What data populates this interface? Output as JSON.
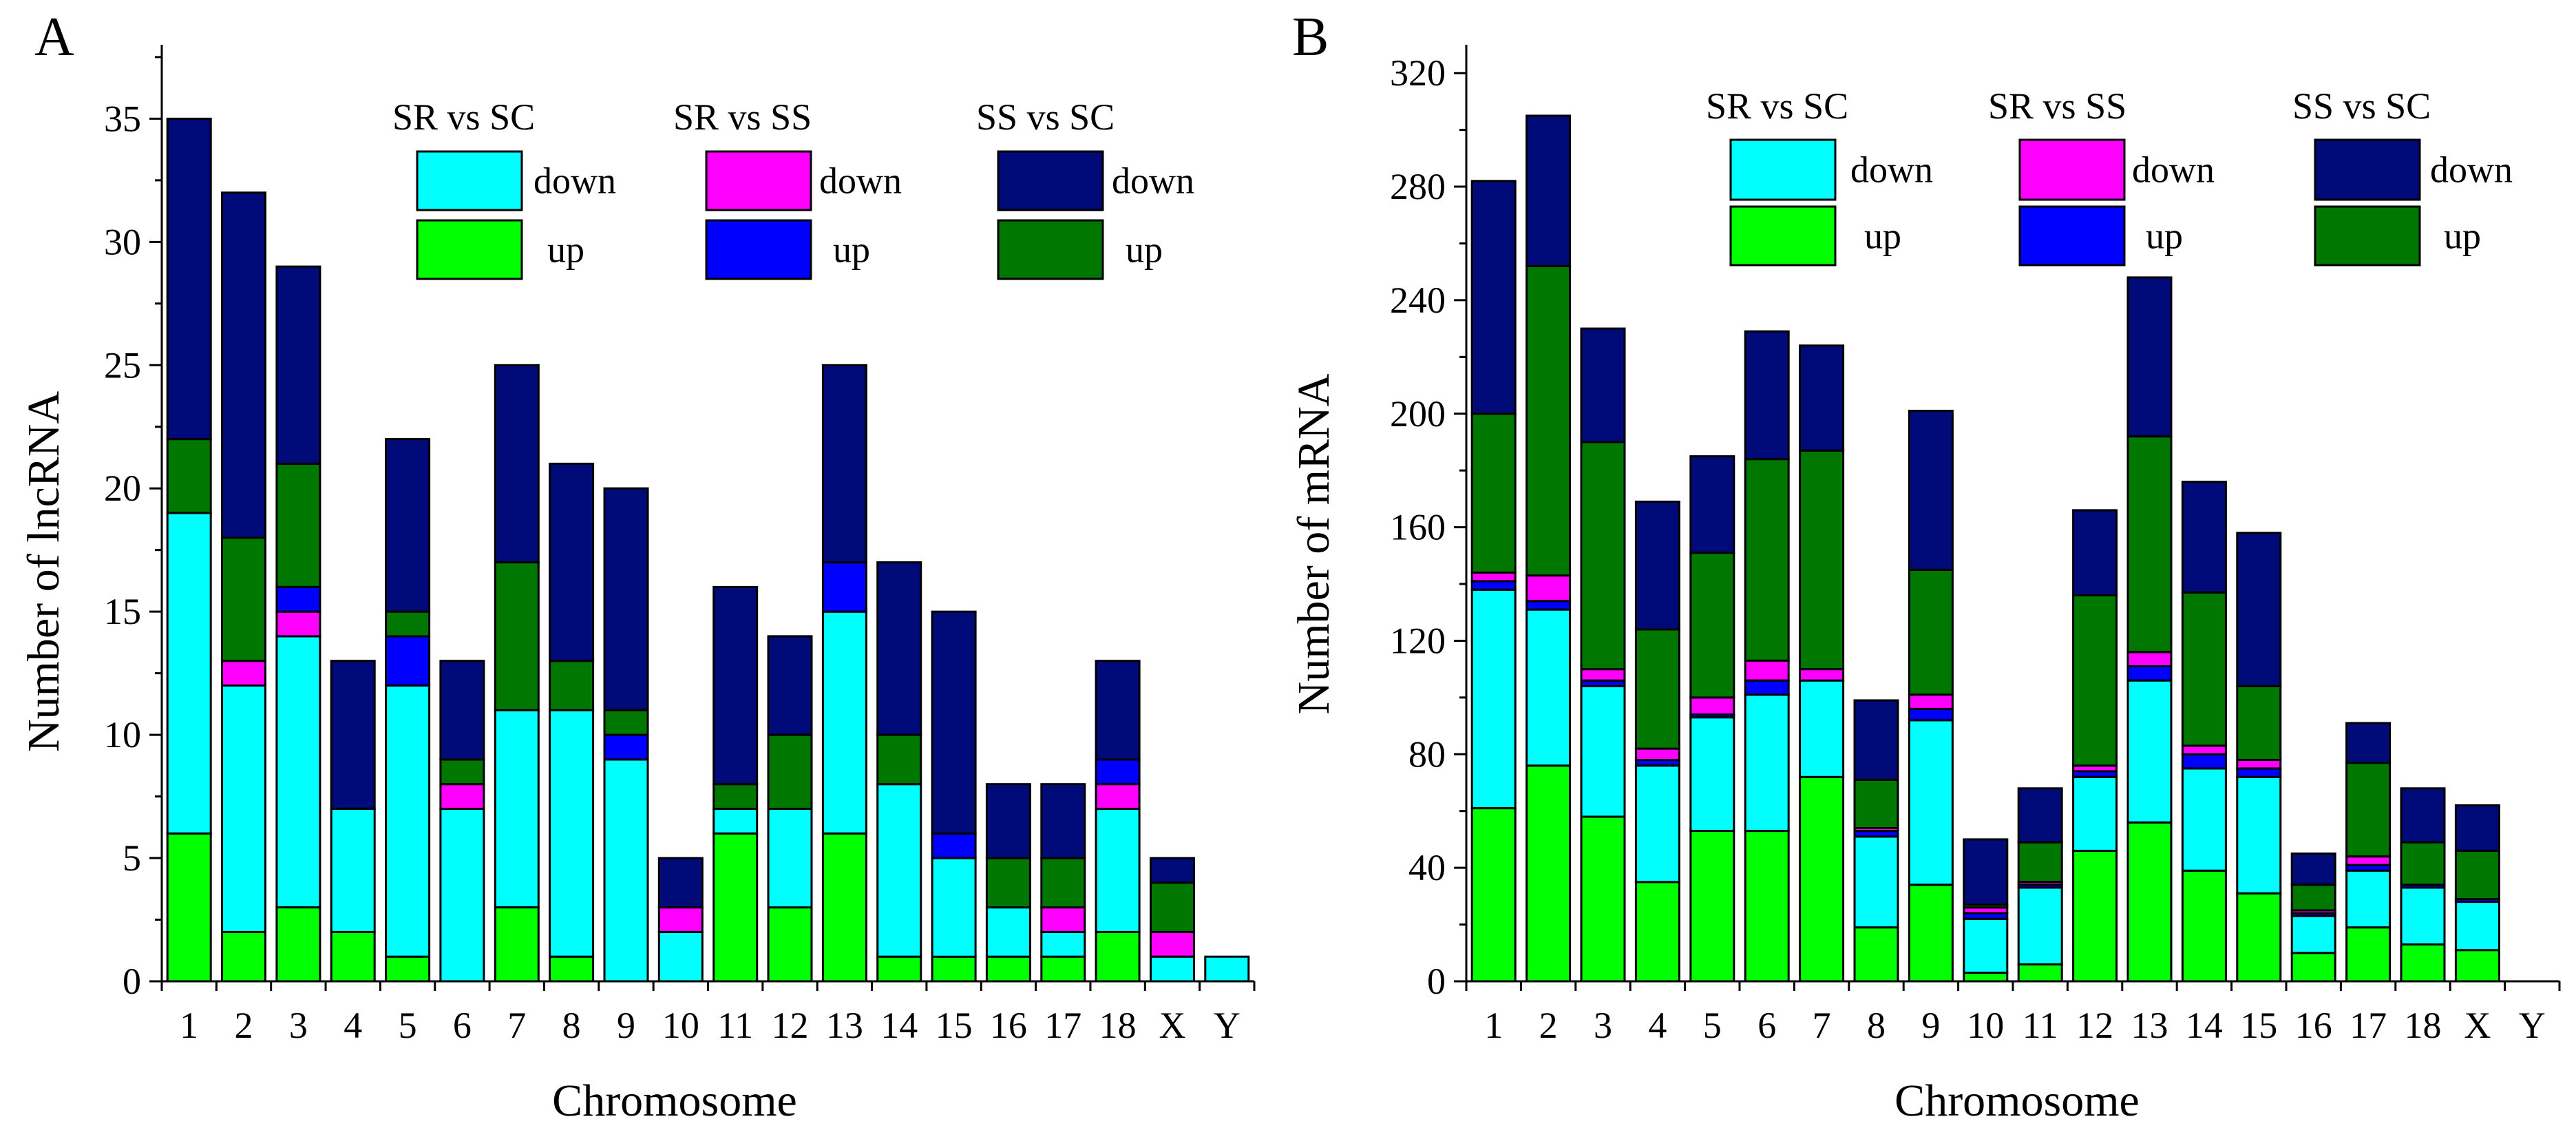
{
  "chart_data": [
    {
      "type": "bar",
      "stacked": true,
      "panel_label": "A",
      "title": "",
      "xlabel": "Chromosome",
      "ylabel": "Number of lncRNA",
      "ylim": [
        0,
        38
      ],
      "yticks": [
        0,
        5,
        10,
        15,
        20,
        25,
        30,
        35
      ],
      "categories": [
        "1",
        "2",
        "3",
        "4",
        "5",
        "6",
        "7",
        "8",
        "9",
        "10",
        "11",
        "12",
        "13",
        "14",
        "15",
        "16",
        "17",
        "18",
        "X",
        "Y"
      ],
      "series": [
        {
          "name": "SR vs SC up",
          "color": "#00ff00",
          "values": [
            6,
            2,
            3,
            2,
            1,
            0,
            3,
            1,
            0,
            0,
            6,
            3,
            6,
            1,
            1,
            1,
            1,
            2,
            0,
            0
          ]
        },
        {
          "name": "SR vs SC down",
          "color": "#00ffff",
          "values": [
            13,
            10,
            11,
            5,
            11,
            7,
            8,
            10,
            9,
            2,
            1,
            4,
            9,
            7,
            4,
            2,
            1,
            5,
            1,
            1
          ]
        },
        {
          "name": "SR vs SS down",
          "color": "#ff00ff",
          "values": [
            0,
            1,
            1,
            0,
            0,
            1,
            0,
            0,
            0,
            1,
            0,
            0,
            0,
            0,
            0,
            0,
            1,
            1,
            1,
            0
          ]
        },
        {
          "name": "SR vs SS up",
          "color": "#0000ff",
          "values": [
            0,
            0,
            1,
            0,
            2,
            0,
            0,
            0,
            1,
            0,
            0,
            0,
            2,
            0,
            1,
            0,
            0,
            1,
            0,
            0
          ]
        },
        {
          "name": "SS vs SC up",
          "color": "#007700",
          "values": [
            3,
            5,
            5,
            0,
            1,
            1,
            6,
            2,
            1,
            0,
            1,
            3,
            0,
            2,
            0,
            2,
            2,
            0,
            2,
            0
          ]
        },
        {
          "name": "SS vs SC down",
          "color": "#000a78",
          "values": [
            13,
            14,
            8,
            6,
            7,
            4,
            8,
            8,
            9,
            2,
            8,
            4,
            8,
            7,
            9,
            3,
            3,
            4,
            1,
            0
          ]
        }
      ],
      "legend": {
        "groups": [
          {
            "title": "SR vs SC",
            "entries": [
              {
                "label": "down",
                "color": "#00ffff"
              },
              {
                "label": "up",
                "color": "#00ff00"
              }
            ]
          },
          {
            "title": "SR vs SS",
            "entries": [
              {
                "label": "down",
                "color": "#ff00ff"
              },
              {
                "label": "up",
                "color": "#0000ff"
              }
            ]
          },
          {
            "title": "SS vs SC",
            "entries": [
              {
                "label": "down",
                "color": "#000a78"
              },
              {
                "label": "up",
                "color": "#007700"
              }
            ]
          }
        ]
      }
    },
    {
      "type": "bar",
      "stacked": true,
      "panel_label": "B",
      "title": "",
      "xlabel": "Chromosome",
      "ylabel": "Number of mRNA",
      "ylim": [
        0,
        330
      ],
      "yticks": [
        0,
        40,
        80,
        120,
        160,
        200,
        240,
        280,
        320
      ],
      "categories": [
        "1",
        "2",
        "3",
        "4",
        "5",
        "6",
        "7",
        "8",
        "9",
        "10",
        "11",
        "12",
        "13",
        "14",
        "15",
        "16",
        "17",
        "18",
        "X",
        "Y"
      ],
      "series": [
        {
          "name": "SR vs SC up",
          "color": "#00ff00",
          "values": [
            61,
            76,
            58,
            35,
            53,
            53,
            72,
            19,
            34,
            3,
            6,
            46,
            56,
            39,
            31,
            10,
            19,
            13,
            11,
            0
          ]
        },
        {
          "name": "SR vs SC down",
          "color": "#00ffff",
          "values": [
            77,
            55,
            46,
            41,
            40,
            48,
            34,
            32,
            58,
            19,
            27,
            26,
            50,
            36,
            41,
            13,
            20,
            20,
            17,
            0
          ]
        },
        {
          "name": "SR vs SS up",
          "color": "#0000ff",
          "values": [
            3,
            3,
            2,
            2,
            1,
            5,
            0,
            2,
            4,
            2,
            1,
            2,
            5,
            5,
            3,
            1,
            2,
            1,
            1,
            0
          ]
        },
        {
          "name": "SR vs SS down",
          "color": "#ff00ff",
          "values": [
            3,
            9,
            4,
            4,
            6,
            7,
            4,
            1,
            5,
            2,
            1,
            2,
            5,
            3,
            3,
            1,
            3,
            0,
            0,
            0
          ]
        },
        {
          "name": "SS vs SC up",
          "color": "#007700",
          "values": [
            56,
            109,
            80,
            42,
            51,
            71,
            77,
            17,
            44,
            1,
            14,
            60,
            76,
            54,
            26,
            9,
            33,
            15,
            17,
            0
          ]
        },
        {
          "name": "SS vs SC down",
          "color": "#000a78",
          "values": [
            82,
            53,
            40,
            45,
            34,
            45,
            37,
            28,
            56,
            23,
            19,
            30,
            56,
            39,
            54,
            11,
            14,
            19,
            16,
            0
          ]
        }
      ],
      "legend": {
        "groups": [
          {
            "title": "SR vs SC",
            "entries": [
              {
                "label": "down",
                "color": "#00ffff"
              },
              {
                "label": "up",
                "color": "#00ff00"
              }
            ]
          },
          {
            "title": "SR vs SS",
            "entries": [
              {
                "label": "down",
                "color": "#ff00ff"
              },
              {
                "label": "up",
                "color": "#0000ff"
              }
            ]
          },
          {
            "title": "SS vs SC",
            "entries": [
              {
                "label": "down",
                "color": "#000a78"
              },
              {
                "label": "up",
                "color": "#007700"
              }
            ]
          }
        ]
      }
    }
  ]
}
